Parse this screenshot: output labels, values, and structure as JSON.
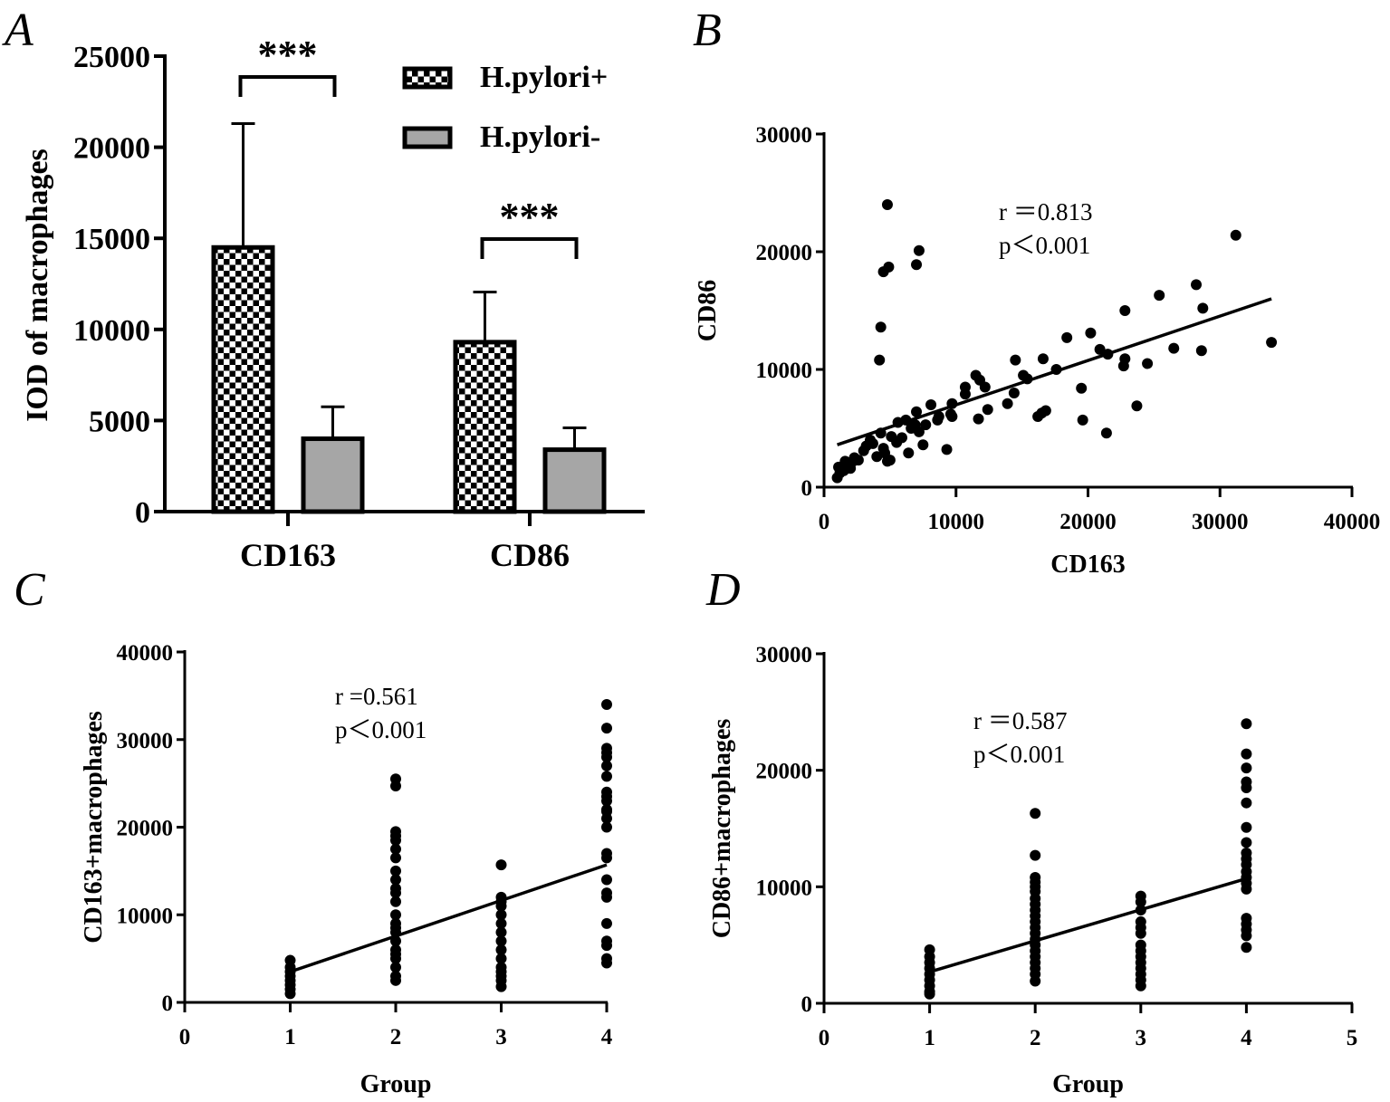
{
  "panel_letters": [
    "A",
    "B",
    "C",
    "D"
  ],
  "chart_data": [
    {
      "id": "A",
      "type": "bar",
      "title": "",
      "xlabel": "",
      "ylabel": "IOD of macrophages",
      "ylim": [
        0,
        25000
      ],
      "yticks": [
        0,
        5000,
        10000,
        15000,
        20000,
        25000
      ],
      "categories": [
        "CD163",
        "CD86"
      ],
      "series": [
        {
          "name": "H.pylori+",
          "pattern": "checkerboard",
          "values": [
            14500,
            9300
          ],
          "error_upper": [
            21300,
            12050
          ]
        },
        {
          "name": "H.pylori-",
          "color": "#a6a6a6",
          "values": [
            4000,
            3400
          ],
          "error_upper": [
            5750,
            4600
          ]
        }
      ],
      "significance": [
        "***",
        "***"
      ],
      "legend": "top-right"
    },
    {
      "id": "B",
      "type": "scatter",
      "xlabel": "CD163",
      "ylabel": "CD86",
      "xlim": [
        0,
        40000
      ],
      "ylim": [
        0,
        30000
      ],
      "xticks": [
        0,
        10000,
        20000,
        30000,
        40000
      ],
      "yticks": [
        0,
        10000,
        20000,
        30000
      ],
      "annotation": [
        "r ＝0.813",
        "p＜0.001"
      ],
      "fit_line": [
        [
          1000,
          3600
        ],
        [
          33900,
          16000
        ]
      ],
      "points": [
        [
          4800,
          24000
        ],
        [
          4500,
          18300
        ],
        [
          4900,
          18700
        ],
        [
          7000,
          18900
        ],
        [
          7200,
          20100
        ],
        [
          4300,
          13600
        ],
        [
          4200,
          10800
        ],
        [
          31200,
          21400
        ],
        [
          25400,
          16300
        ],
        [
          28200,
          17200
        ],
        [
          28700,
          15200
        ],
        [
          22800,
          15000
        ],
        [
          33900,
          12300
        ],
        [
          26500,
          11800
        ],
        [
          28600,
          11600
        ],
        [
          24500,
          10500
        ],
        [
          21500,
          11300
        ],
        [
          20900,
          11700
        ],
        [
          22800,
          10900
        ],
        [
          22700,
          10300
        ],
        [
          20200,
          13100
        ],
        [
          18400,
          12700
        ],
        [
          16600,
          10900
        ],
        [
          17600,
          10000
        ],
        [
          14500,
          10800
        ],
        [
          19500,
          8400
        ],
        [
          19600,
          5700
        ],
        [
          21400,
          4600
        ],
        [
          23700,
          6900
        ],
        [
          16200,
          6000
        ],
        [
          16500,
          6300
        ],
        [
          16800,
          6500
        ],
        [
          14400,
          8000
        ],
        [
          15100,
          9500
        ],
        [
          15400,
          9200
        ],
        [
          13900,
          7100
        ],
        [
          11800,
          9100
        ],
        [
          11500,
          9500
        ],
        [
          12200,
          8500
        ],
        [
          12400,
          6600
        ],
        [
          11700,
          5800
        ],
        [
          9700,
          7100
        ],
        [
          10700,
          7900
        ],
        [
          10700,
          8500
        ],
        [
          8100,
          7000
        ],
        [
          9700,
          6000
        ],
        [
          9300,
          3200
        ],
        [
          7700,
          5300
        ],
        [
          7000,
          6400
        ],
        [
          7200,
          4700
        ],
        [
          6600,
          5000
        ],
        [
          6200,
          5700
        ],
        [
          6900,
          5300
        ],
        [
          5600,
          5500
        ],
        [
          6400,
          2900
        ],
        [
          7500,
          3600
        ],
        [
          5100,
          4300
        ],
        [
          5500,
          3800
        ],
        [
          4800,
          2200
        ],
        [
          4300,
          4600
        ],
        [
          3500,
          4000
        ],
        [
          4000,
          2600
        ],
        [
          3700,
          3700
        ],
        [
          3000,
          3100
        ],
        [
          2600,
          2300
        ],
        [
          2200,
          2200
        ],
        [
          1800,
          1700
        ],
        [
          1500,
          1400
        ],
        [
          1200,
          1200
        ],
        [
          1000,
          800
        ],
        [
          1100,
          1700
        ],
        [
          1600,
          2200
        ],
        [
          2000,
          1600
        ],
        [
          2300,
          2500
        ],
        [
          4500,
          3300
        ],
        [
          3200,
          3500
        ],
        [
          8700,
          6000
        ],
        [
          9600,
          6200
        ],
        [
          8600,
          5700
        ],
        [
          5900,
          4200
        ],
        [
          4600,
          2900
        ],
        [
          5000,
          2300
        ]
      ]
    },
    {
      "id": "C",
      "type": "scatter",
      "xlabel": "Group",
      "ylabel": "CD163+macrophages",
      "xlim": [
        0,
        4
      ],
      "ylim": [
        0,
        40000
      ],
      "xticks": [
        0,
        1,
        2,
        3,
        4
      ],
      "yticks": [
        0,
        10000,
        20000,
        30000,
        40000
      ],
      "annotation": [
        "r =0.561",
        "p＜0.001"
      ],
      "fit_line": [
        [
          1,
          3500
        ],
        [
          4,
          15700
        ]
      ],
      "groups": {
        "1": [
          4800,
          4000,
          3500,
          3000,
          2500,
          2000,
          1500,
          1000
        ],
        "2": [
          25500,
          24700,
          19500,
          19000,
          18500,
          17500,
          16500,
          15000,
          14000,
          13000,
          12500,
          11500,
          10000,
          9000,
          8500,
          8000,
          7000,
          6000,
          5500,
          5000,
          4000,
          3000,
          2500
        ],
        "3": [
          15700,
          12000,
          11500,
          11000,
          10000,
          9000,
          8000,
          7000,
          6000,
          5000,
          4000,
          3500,
          3000,
          2500,
          1800
        ],
        "4": [
          34000,
          31300,
          29000,
          28500,
          28000,
          27000,
          25800,
          24000,
          23500,
          23000,
          22000,
          21800,
          21000,
          20000,
          17000,
          16500,
          14000,
          12500,
          12000,
          9000,
          7000,
          6500,
          5000,
          4500
        ]
      }
    },
    {
      "id": "D",
      "type": "scatter",
      "xlabel": "Group",
      "ylabel": "CD86+macrophages",
      "xlim": [
        0,
        5
      ],
      "ylim": [
        0,
        30000
      ],
      "xticks": [
        0,
        1,
        2,
        3,
        4,
        5
      ],
      "yticks": [
        0,
        10000,
        20000,
        30000
      ],
      "annotation": [
        "r ＝0.587",
        "p＜0.001"
      ],
      "fit_line": [
        [
          1,
          2700
        ],
        [
          4,
          10700
        ]
      ],
      "groups": {
        "1": [
          4600,
          4000,
          3500,
          3000,
          2500,
          2000,
          1500,
          1000,
          800
        ],
        "2": [
          16300,
          12700,
          10800,
          10400,
          10000,
          9600,
          9000,
          8500,
          8000,
          7500,
          7000,
          6500,
          6000,
          5500,
          5000,
          4500,
          4000,
          3500,
          3000,
          2500,
          1900
        ],
        "3": [
          9200,
          8700,
          8000,
          7000,
          6500,
          6000,
          5000,
          4500,
          4000,
          3500,
          3000,
          2500,
          2000,
          1500
        ],
        "4": [
          24000,
          21400,
          20200,
          19000,
          18500,
          17200,
          15100,
          13800,
          12900,
          12400,
          11900,
          11300,
          10800,
          10300,
          9800,
          7300,
          6800,
          6300,
          5800,
          4800
        ]
      }
    }
  ]
}
